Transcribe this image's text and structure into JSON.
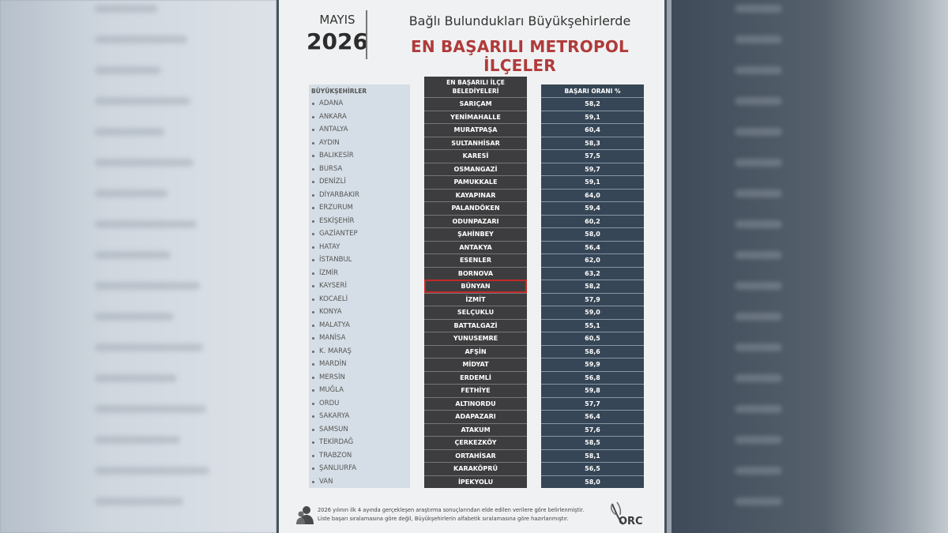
{
  "header": {
    "month": "MAYIS",
    "year": "2026",
    "subtitle": "Bağlı Bulundukları Büyükşehirlerde",
    "title": "EN BAŞARILI METROPOL İLÇELER"
  },
  "chart_data": {
    "type": "table",
    "columns": [
      "BÜYÜKŞEHİRLER",
      "EN BAŞARILI İLÇE BELEDİYELERİ",
      "BAŞARI ORANI %"
    ],
    "highlighted_row": 14,
    "rows": [
      {
        "city": "ADANA",
        "district": "SARIÇAM",
        "rate": "58,2"
      },
      {
        "city": "ANKARA",
        "district": "YENİMAHALLE",
        "rate": "59,1"
      },
      {
        "city": "ANTALYA",
        "district": "MURATPAŞA",
        "rate": "60,4"
      },
      {
        "city": "AYDIN",
        "district": "SULTANHİSAR",
        "rate": "58,3"
      },
      {
        "city": "BALIKESİR",
        "district": "KARESİ",
        "rate": "57,5"
      },
      {
        "city": "BURSA",
        "district": "OSMANGAZİ",
        "rate": "59,7"
      },
      {
        "city": "DENİZLİ",
        "district": "PAMUKKALE",
        "rate": "59,1"
      },
      {
        "city": "DİYARBAKIR",
        "district": "KAYAPINAR",
        "rate": "64,0"
      },
      {
        "city": "ERZURUM",
        "district": "PALANDÖKEN",
        "rate": "59,4"
      },
      {
        "city": "ESKİŞEHİR",
        "district": "ODUNPAZARI",
        "rate": "60,2"
      },
      {
        "city": "GAZİANTEP",
        "district": "ŞAHİNBEY",
        "rate": "58,0"
      },
      {
        "city": "HATAY",
        "district": "ANTAKYA",
        "rate": "56,4"
      },
      {
        "city": "İSTANBUL",
        "district": "ESENLER",
        "rate": "62,0"
      },
      {
        "city": "İZMİR",
        "district": "BORNOVA",
        "rate": "63,2"
      },
      {
        "city": "KAYSERİ",
        "district": "BÜNYAN",
        "rate": "58,2"
      },
      {
        "city": "KOCAELİ",
        "district": "İZMİT",
        "rate": "57,9"
      },
      {
        "city": "KONYA",
        "district": "SELÇUKLU",
        "rate": "59,0"
      },
      {
        "city": "MALATYA",
        "district": "BATTALGAZİ",
        "rate": "55,1"
      },
      {
        "city": "MANİSA",
        "district": "YUNUSEMRE",
        "rate": "60,5"
      },
      {
        "city": "K. MARAŞ",
        "district": "AFŞİN",
        "rate": "58,6"
      },
      {
        "city": "MARDİN",
        "district": "MİDYAT",
        "rate": "59,9"
      },
      {
        "city": "MERSİN",
        "district": "ERDEMLİ",
        "rate": "56,8"
      },
      {
        "city": "MUĞLA",
        "district": "FETHİYE",
        "rate": "59,8"
      },
      {
        "city": "ORDU",
        "district": "ALTINORDU",
        "rate": "57,7"
      },
      {
        "city": "SAKARYA",
        "district": "ADAPAZARI",
        "rate": "56,4"
      },
      {
        "city": "SAMSUN",
        "district": "ATAKUM",
        "rate": "57,6"
      },
      {
        "city": "TEKİRDAĞ",
        "district": "ÇERKEZKÖY",
        "rate": "58,5"
      },
      {
        "city": "TRABZON",
        "district": "ORTAHİSAR",
        "rate": "58,1"
      },
      {
        "city": "ŞANLIURFA",
        "district": "KARAKÖPRÜ",
        "rate": "56,5"
      },
      {
        "city": "VAN",
        "district": "İPEKYOLU",
        "rate": "58,0"
      }
    ]
  },
  "footer": {
    "line1": "2026 yılının ilk 4 ayında gerçekleşen araştırma sonuçlarından elde edilen verilere göre belirlenmiştir.",
    "line2": "Liste başarı sıralamasına göre değil, Büyükşehirlerin alfabetik sıralamasına göre hazırlanmıştır.",
    "logo_text": "ORC",
    "icon": "people-icon"
  },
  "colors": {
    "title_red": "#b03a3a",
    "district_col": "#3d3d3f",
    "rate_col": "#364656",
    "city_col": "#d5dee6",
    "highlight": "#c02a2a"
  }
}
